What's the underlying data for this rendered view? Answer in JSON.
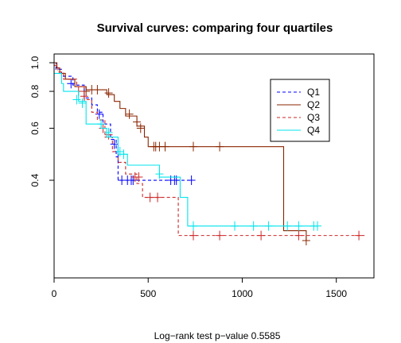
{
  "chart_data": {
    "type": "line",
    "title": "Survival curves: comparing four quartiles",
    "footnote": "Log−rank test p−value  0.5585",
    "xlim": [
      0,
      1700
    ],
    "ylim": [
      0.2,
      1.0
    ],
    "y_scale": "log",
    "x_ticks": [
      0,
      500,
      1000,
      1500
    ],
    "y_ticks": [
      0.4,
      0.6,
      0.8,
      1.0
    ],
    "x_tick_labels": [
      "0",
      "500",
      "1000",
      "1500"
    ],
    "y_tick_labels": [
      "0.4",
      "0.6",
      "0.8",
      "1.0"
    ],
    "legend_position": "top-right",
    "series": [
      {
        "name": "Q1",
        "color": "#0000ff",
        "dash": "dashed",
        "steps": [
          [
            0,
            1.0
          ],
          [
            10,
            0.95
          ],
          [
            40,
            0.9
          ],
          [
            100,
            0.84
          ],
          [
            160,
            0.76
          ],
          [
            200,
            0.72
          ],
          [
            230,
            0.68
          ],
          [
            260,
            0.62
          ],
          [
            300,
            0.55
          ],
          [
            330,
            0.48
          ],
          [
            340,
            0.4
          ],
          [
            700,
            0.4
          ],
          [
            730,
            0.4
          ]
        ],
        "censors": [
          [
            90,
            0.85
          ],
          [
            240,
            0.67
          ],
          [
            320,
            0.53
          ],
          [
            340,
            0.5
          ],
          [
            360,
            0.4
          ],
          [
            390,
            0.4
          ],
          [
            410,
            0.4
          ],
          [
            420,
            0.4
          ],
          [
            620,
            0.4
          ],
          [
            640,
            0.4
          ],
          [
            650,
            0.4
          ],
          [
            730,
            0.4
          ]
        ]
      },
      {
        "name": "Q2",
        "color": "#8b2500",
        "dash": "solid",
        "steps": [
          [
            0,
            1.0
          ],
          [
            15,
            0.96
          ],
          [
            30,
            0.92
          ],
          [
            60,
            0.88
          ],
          [
            110,
            0.83
          ],
          [
            170,
            0.81
          ],
          [
            280,
            0.78
          ],
          [
            320,
            0.74
          ],
          [
            350,
            0.7
          ],
          [
            380,
            0.66
          ],
          [
            440,
            0.61
          ],
          [
            480,
            0.56
          ],
          [
            500,
            0.52
          ],
          [
            1220,
            0.27
          ],
          [
            1340,
            0.25
          ]
        ],
        "censors": [
          [
            170,
            0.8
          ],
          [
            200,
            0.81
          ],
          [
            230,
            0.81
          ],
          [
            290,
            0.79
          ],
          [
            400,
            0.67
          ],
          [
            440,
            0.63
          ],
          [
            460,
            0.6
          ],
          [
            530,
            0.52
          ],
          [
            540,
            0.52
          ],
          [
            560,
            0.52
          ],
          [
            590,
            0.52
          ],
          [
            740,
            0.52
          ],
          [
            880,
            0.52
          ],
          [
            1340,
            0.25
          ]
        ]
      },
      {
        "name": "Q3",
        "color": "#cd2626",
        "dash": "dashed",
        "steps": [
          [
            0,
            0.98
          ],
          [
            20,
            0.93
          ],
          [
            50,
            0.88
          ],
          [
            120,
            0.83
          ],
          [
            160,
            0.75
          ],
          [
            200,
            0.68
          ],
          [
            230,
            0.64
          ],
          [
            270,
            0.56
          ],
          [
            310,
            0.5
          ],
          [
            340,
            0.46
          ],
          [
            380,
            0.42
          ],
          [
            440,
            0.39
          ],
          [
            470,
            0.35
          ],
          [
            660,
            0.26
          ],
          [
            1650,
            0.26
          ]
        ],
        "censors": [
          [
            130,
            0.8
          ],
          [
            160,
            0.77
          ],
          [
            260,
            0.6
          ],
          [
            290,
            0.57
          ],
          [
            430,
            0.41
          ],
          [
            450,
            0.41
          ],
          [
            510,
            0.35
          ],
          [
            550,
            0.35
          ],
          [
            740,
            0.26
          ],
          [
            880,
            0.26
          ],
          [
            1100,
            0.26
          ],
          [
            1300,
            0.26
          ],
          [
            1620,
            0.26
          ]
        ]
      },
      {
        "name": "Q4",
        "color": "#00e5ee",
        "dash": "solid",
        "steps": [
          [
            0,
            0.92
          ],
          [
            40,
            0.85
          ],
          [
            50,
            0.8
          ],
          [
            130,
            0.74
          ],
          [
            170,
            0.62
          ],
          [
            250,
            0.6
          ],
          [
            280,
            0.56
          ],
          [
            340,
            0.49
          ],
          [
            390,
            0.45
          ],
          [
            560,
            0.41
          ],
          [
            670,
            0.35
          ],
          [
            710,
            0.28
          ],
          [
            1400,
            0.28
          ]
        ],
        "censors": [
          [
            120,
            0.75
          ],
          [
            150,
            0.73
          ],
          [
            250,
            0.62
          ],
          [
            290,
            0.58
          ],
          [
            350,
            0.5
          ],
          [
            370,
            0.49
          ],
          [
            560,
            0.42
          ],
          [
            740,
            0.28
          ],
          [
            960,
            0.28
          ],
          [
            1060,
            0.28
          ],
          [
            1140,
            0.28
          ],
          [
            1240,
            0.28
          ],
          [
            1300,
            0.28
          ],
          [
            1380,
            0.28
          ],
          [
            1400,
            0.28
          ]
        ]
      }
    ]
  }
}
